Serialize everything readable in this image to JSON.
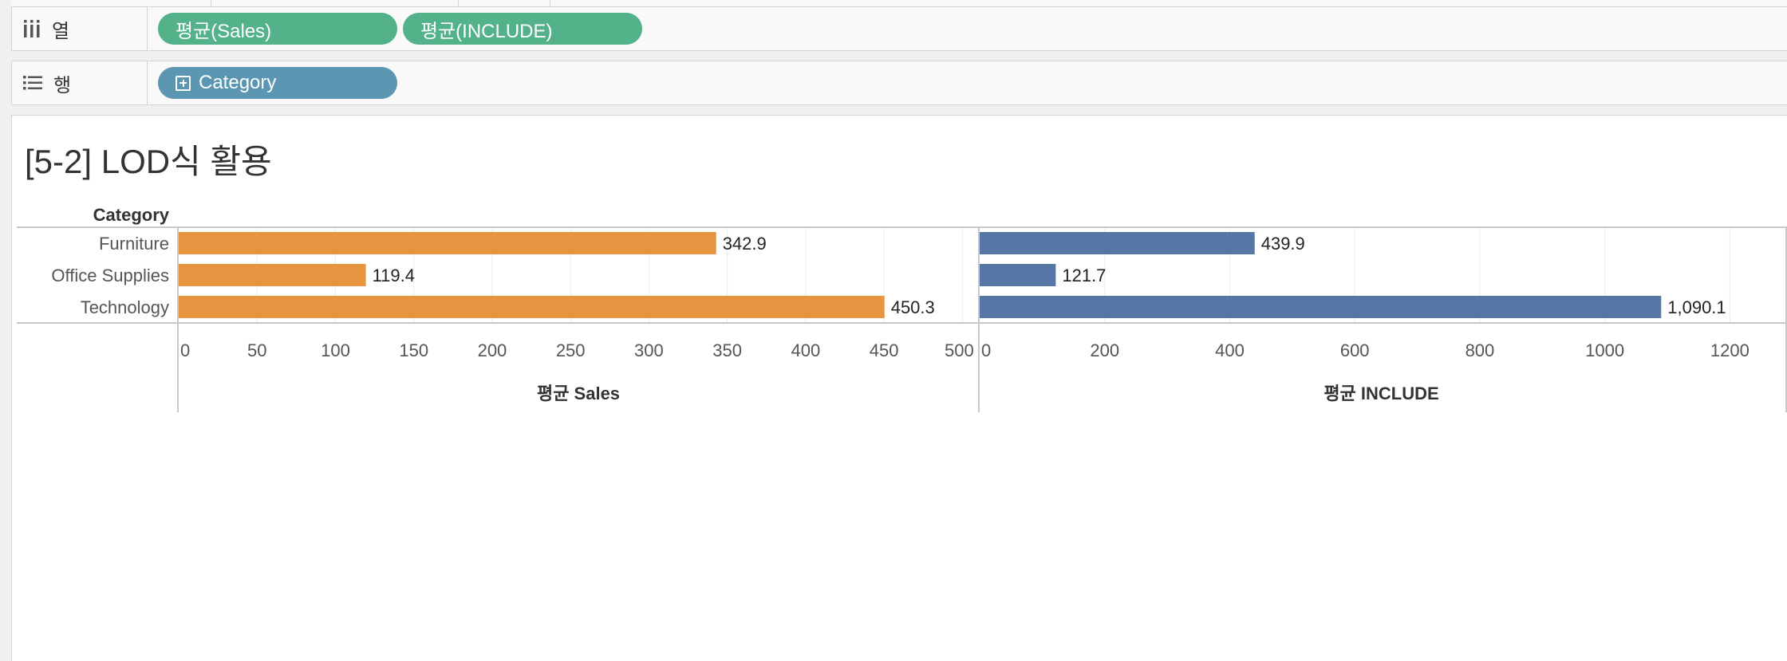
{
  "columns_shelf": {
    "label": "열",
    "pills": [
      "평균(Sales)",
      "평균(INCLUDE)"
    ]
  },
  "rows_shelf": {
    "label": "행",
    "pills": [
      "Category"
    ]
  },
  "colors": {
    "columns_pill": "#53b28a",
    "rows_pill": "#5b97b3",
    "sales_bar": "#e69440",
    "include_bar": "#5676a5"
  },
  "view": {
    "title": "[5-2] LOD식 활용"
  },
  "chart_data": {
    "type": "bar",
    "orientation": "horizontal",
    "row_header": "Category",
    "categories": [
      "Furniture",
      "Office Supplies",
      "Technology"
    ],
    "panes": [
      {
        "axis_title": "평균 Sales",
        "values": [
          342.9,
          119.4,
          450.3
        ],
        "labels": [
          "342.9",
          "119.4",
          "450.3"
        ],
        "xlim": [
          0,
          510
        ],
        "ticks": [
          0,
          50,
          100,
          150,
          200,
          250,
          300,
          350,
          400,
          450,
          500
        ],
        "color": "#e69440"
      },
      {
        "axis_title": "평균 INCLUDE",
        "values": [
          439.9,
          121.7,
          1090.1
        ],
        "labels": [
          "439.9",
          "121.7",
          "1,090.1"
        ],
        "xlim": [
          0,
          1285
        ],
        "ticks": [
          0,
          200,
          400,
          600,
          800,
          1000,
          1200
        ],
        "color": "#5676a5"
      }
    ],
    "grid": true
  }
}
